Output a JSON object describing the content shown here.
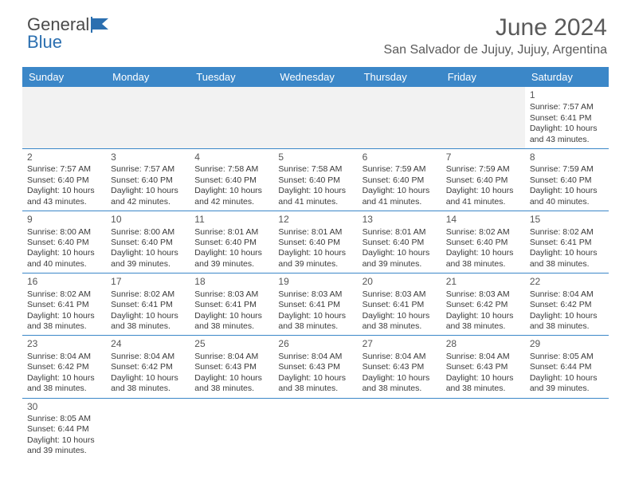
{
  "brand": {
    "part1": "General",
    "part2": "Blue",
    "part1_color": "#4a4a4a",
    "part2_color": "#2b6fb0"
  },
  "title": "June 2024",
  "location": "San Salvador de Jujuy, Jujuy, Argentina",
  "colors": {
    "header_bg": "#3b87c8",
    "header_text": "#ffffff",
    "border": "#3b87c8",
    "empty_bg": "#f2f2f2",
    "text": "#3a3a3a"
  },
  "day_headers": [
    "Sunday",
    "Monday",
    "Tuesday",
    "Wednesday",
    "Thursday",
    "Friday",
    "Saturday"
  ],
  "weeks": [
    [
      null,
      null,
      null,
      null,
      null,
      null,
      {
        "n": "1",
        "sunrise": "7:57 AM",
        "sunset": "6:41 PM",
        "daylight": "10 hours and 43 minutes."
      }
    ],
    [
      {
        "n": "2",
        "sunrise": "7:57 AM",
        "sunset": "6:40 PM",
        "daylight": "10 hours and 43 minutes."
      },
      {
        "n": "3",
        "sunrise": "7:57 AM",
        "sunset": "6:40 PM",
        "daylight": "10 hours and 42 minutes."
      },
      {
        "n": "4",
        "sunrise": "7:58 AM",
        "sunset": "6:40 PM",
        "daylight": "10 hours and 42 minutes."
      },
      {
        "n": "5",
        "sunrise": "7:58 AM",
        "sunset": "6:40 PM",
        "daylight": "10 hours and 41 minutes."
      },
      {
        "n": "6",
        "sunrise": "7:59 AM",
        "sunset": "6:40 PM",
        "daylight": "10 hours and 41 minutes."
      },
      {
        "n": "7",
        "sunrise": "7:59 AM",
        "sunset": "6:40 PM",
        "daylight": "10 hours and 41 minutes."
      },
      {
        "n": "8",
        "sunrise": "7:59 AM",
        "sunset": "6:40 PM",
        "daylight": "10 hours and 40 minutes."
      }
    ],
    [
      {
        "n": "9",
        "sunrise": "8:00 AM",
        "sunset": "6:40 PM",
        "daylight": "10 hours and 40 minutes."
      },
      {
        "n": "10",
        "sunrise": "8:00 AM",
        "sunset": "6:40 PM",
        "daylight": "10 hours and 39 minutes."
      },
      {
        "n": "11",
        "sunrise": "8:01 AM",
        "sunset": "6:40 PM",
        "daylight": "10 hours and 39 minutes."
      },
      {
        "n": "12",
        "sunrise": "8:01 AM",
        "sunset": "6:40 PM",
        "daylight": "10 hours and 39 minutes."
      },
      {
        "n": "13",
        "sunrise": "8:01 AM",
        "sunset": "6:40 PM",
        "daylight": "10 hours and 39 minutes."
      },
      {
        "n": "14",
        "sunrise": "8:02 AM",
        "sunset": "6:40 PM",
        "daylight": "10 hours and 38 minutes."
      },
      {
        "n": "15",
        "sunrise": "8:02 AM",
        "sunset": "6:41 PM",
        "daylight": "10 hours and 38 minutes."
      }
    ],
    [
      {
        "n": "16",
        "sunrise": "8:02 AM",
        "sunset": "6:41 PM",
        "daylight": "10 hours and 38 minutes."
      },
      {
        "n": "17",
        "sunrise": "8:02 AM",
        "sunset": "6:41 PM",
        "daylight": "10 hours and 38 minutes."
      },
      {
        "n": "18",
        "sunrise": "8:03 AM",
        "sunset": "6:41 PM",
        "daylight": "10 hours and 38 minutes."
      },
      {
        "n": "19",
        "sunrise": "8:03 AM",
        "sunset": "6:41 PM",
        "daylight": "10 hours and 38 minutes."
      },
      {
        "n": "20",
        "sunrise": "8:03 AM",
        "sunset": "6:41 PM",
        "daylight": "10 hours and 38 minutes."
      },
      {
        "n": "21",
        "sunrise": "8:03 AM",
        "sunset": "6:42 PM",
        "daylight": "10 hours and 38 minutes."
      },
      {
        "n": "22",
        "sunrise": "8:04 AM",
        "sunset": "6:42 PM",
        "daylight": "10 hours and 38 minutes."
      }
    ],
    [
      {
        "n": "23",
        "sunrise": "8:04 AM",
        "sunset": "6:42 PM",
        "daylight": "10 hours and 38 minutes."
      },
      {
        "n": "24",
        "sunrise": "8:04 AM",
        "sunset": "6:42 PM",
        "daylight": "10 hours and 38 minutes."
      },
      {
        "n": "25",
        "sunrise": "8:04 AM",
        "sunset": "6:43 PM",
        "daylight": "10 hours and 38 minutes."
      },
      {
        "n": "26",
        "sunrise": "8:04 AM",
        "sunset": "6:43 PM",
        "daylight": "10 hours and 38 minutes."
      },
      {
        "n": "27",
        "sunrise": "8:04 AM",
        "sunset": "6:43 PM",
        "daylight": "10 hours and 38 minutes."
      },
      {
        "n": "28",
        "sunrise": "8:04 AM",
        "sunset": "6:43 PM",
        "daylight": "10 hours and 38 minutes."
      },
      {
        "n": "29",
        "sunrise": "8:05 AM",
        "sunset": "6:44 PM",
        "daylight": "10 hours and 39 minutes."
      }
    ],
    [
      {
        "n": "30",
        "sunrise": "8:05 AM",
        "sunset": "6:44 PM",
        "daylight": "10 hours and 39 minutes."
      },
      null,
      null,
      null,
      null,
      null,
      null
    ]
  ],
  "labels": {
    "sunrise": "Sunrise:",
    "sunset": "Sunset:",
    "daylight": "Daylight:"
  }
}
